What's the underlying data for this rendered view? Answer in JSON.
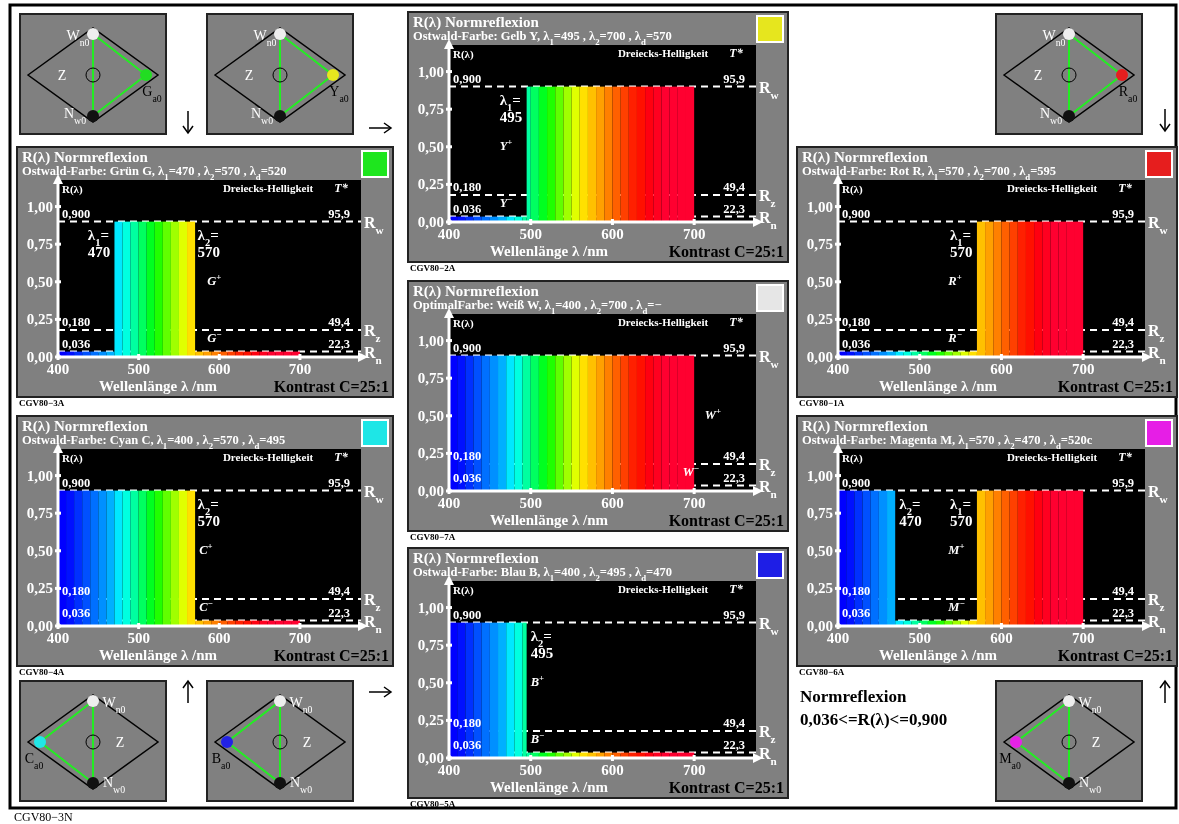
{
  "chart_data": [
    {
      "type": "other",
      "annotations": [
        "W$_{n0}$",
        "Z",
        "N$_{w0}$",
        "G$_{a0}$"
      ]
    },
    {
      "type": "other",
      "annotations": [
        "W$_{n0}$",
        "Z",
        "N$_{w0}$",
        "Y$_{a0}$"
      ]
    },
    {
      "type": "histogram",
      "title": "R(λ) Normreflexion",
      "subtitle": "Ostwald-Farbe: Gelb Y, λ$_{1}$=495 , λ$_{2}$=700 , λ$_{d}$=570",
      "xlabel": "Wellenlänge λ /nm",
      "ylabel": "R(λ)",
      "bins": [
        400,
        410,
        420,
        430,
        440,
        450,
        460,
        470,
        480,
        490,
        495,
        500,
        510,
        520,
        530,
        540,
        550,
        560,
        570,
        580,
        590,
        600,
        610,
        620,
        630,
        640,
        650,
        660,
        670,
        680,
        690,
        700
      ],
      "values": [
        0.036,
        0.036,
        0.036,
        0.036,
        0.036,
        0.036,
        0.036,
        0.036,
        0.036,
        0.036,
        0.9,
        0.9,
        0.9,
        0.9,
        0.9,
        0.9,
        0.9,
        0.9,
        0.9,
        0.9,
        0.9,
        0.9,
        0.9,
        0.9,
        0.9,
        0.9,
        0.9,
        0.9,
        0.9,
        0.9,
        0.9
      ],
      "colors": [
        "#0000ff",
        "#0010ff",
        "#0030ff",
        "#0050ff",
        "#0070ff",
        "#0090ff",
        "#00b0ff",
        "#00e8ff",
        "#00ffe0",
        "#00ffa0",
        "#00ffa0",
        "#00ff60",
        "#00ff20",
        "#20ff00",
        "#60ff00",
        "#a0ff00",
        "#e0ff00",
        "#ffe000",
        "#ffc000",
        "#ffa000",
        "#ff8000",
        "#ff6000",
        "#ff4000",
        "#ff2000",
        "#ff1000",
        "#ff0010",
        "#ff0020",
        "#ff0030",
        "#ff0030",
        "#ff0030",
        "#ff0030"
      ],
      "xlim": [
        400,
        772
      ],
      "ylim": [
        0,
        1.15
      ],
      "xticks": [
        400,
        500,
        600,
        700
      ],
      "yticks": [
        {
          "value": 0,
          "label": "0,00"
        },
        {
          "value": 0.25,
          "label": "0,25"
        },
        {
          "value": 0.5,
          "label": "0,50"
        },
        {
          "value": 0.75,
          "label": "0,75"
        },
        {
          "value": 1,
          "label": "1,00"
        }
      ],
      "ref_lines": [
        {
          "axis": "y",
          "value": 0.9,
          "label": "R$_{w}$",
          "color": "#ffffff",
          "line_style": "dashed"
        },
        {
          "axis": "y",
          "value": 0.18,
          "label": "R$_{z}$",
          "color": "#ffffff",
          "line_style": "dashed"
        },
        {
          "axis": "y",
          "value": 0.036,
          "label": "R$_{n}$",
          "color": "#ffffff",
          "line_style": "dashed"
        }
      ],
      "annotations": [
        "Dreiecks-Helligkeit",
        "T*",
        "Kontrast C=25:1",
        "CGV80−2A",
        "0,900",
        "0,180",
        "0,036",
        "95,9",
        "49,4",
        "22,3",
        "λ$_{1}$=\n495",
        "Y$^{+}$",
        "Y$^{−}$"
      ]
    },
    {
      "type": "other",
      "annotations": [
        "W$_{n0}$",
        "Z",
        "N$_{w0}$",
        "R$_{a0}$"
      ]
    },
    {
      "type": "histogram",
      "title": "R(λ) Normreflexion",
      "subtitle": "Ostwald-Farbe: Grün G, λ$_{1}$=470 , λ$_{2}$=570 , λ$_{d}$=520",
      "xlabel": "Wellenlänge λ /nm",
      "ylabel": "R(λ)",
      "bins": [
        400,
        410,
        420,
        430,
        440,
        450,
        460,
        470,
        480,
        490,
        500,
        510,
        520,
        530,
        540,
        550,
        560,
        570,
        580,
        590,
        600,
        610,
        620,
        630,
        640,
        650,
        660,
        670,
        680,
        690,
        700
      ],
      "values": [
        0.036,
        0.036,
        0.036,
        0.036,
        0.036,
        0.036,
        0.036,
        0.9,
        0.9,
        0.9,
        0.9,
        0.9,
        0.9,
        0.9,
        0.9,
        0.9,
        0.9,
        0.036,
        0.036,
        0.036,
        0.036,
        0.036,
        0.036,
        0.036,
        0.036,
        0.036,
        0.036,
        0.036,
        0.036,
        0.036
      ],
      "colors": [
        "#0000ff",
        "#0010ff",
        "#0030ff",
        "#0050ff",
        "#0070ff",
        "#0090ff",
        "#00b0ff",
        "#00e8ff",
        "#00ffe0",
        "#00ffa0",
        "#00ff60",
        "#00ff20",
        "#20ff00",
        "#60ff00",
        "#a0ff00",
        "#e0ff00",
        "#ffe000",
        "#ffc000",
        "#ffa000",
        "#ff8000",
        "#ff6000",
        "#ff4000",
        "#ff2000",
        "#ff1000",
        "#ff0010",
        "#ff0020",
        "#ff0030",
        "#ff0030",
        "#ff0030",
        "#ff0030"
      ],
      "xlim": [
        400,
        772
      ],
      "ylim": [
        0,
        1.15
      ],
      "xticks": [
        400,
        500,
        600,
        700
      ],
      "yticks": [
        {
          "value": 0,
          "label": "0,00"
        },
        {
          "value": 0.25,
          "label": "0,25"
        },
        {
          "value": 0.5,
          "label": "0,50"
        },
        {
          "value": 0.75,
          "label": "0,75"
        },
        {
          "value": 1,
          "label": "1,00"
        }
      ],
      "ref_lines": [
        {
          "axis": "y",
          "value": 0.9,
          "label": "R$_{w}$",
          "color": "#ffffff",
          "line_style": "dashed"
        },
        {
          "axis": "y",
          "value": 0.18,
          "label": "R$_{z}$",
          "color": "#ffffff",
          "line_style": "dashed"
        },
        {
          "axis": "y",
          "value": 0.036,
          "label": "R$_{n}$",
          "color": "#ffffff",
          "line_style": "dashed"
        }
      ],
      "annotations": [
        "Dreiecks-Helligkeit",
        "T*",
        "Kontrast C=25:1",
        "CGV80−3A",
        "0,900",
        "0,180",
        "0,036",
        "95,9",
        "49,4",
        "22,3",
        "λ$_{1}$=\n470",
        "λ$_{2}$=\n570",
        "G$^{+}$",
        "G$^{−}$"
      ]
    },
    {
      "type": "histogram",
      "title": "R(λ) Normreflexion",
      "subtitle": "Ostwald-Farbe: Rot R, λ$_{1}$=570 , λ$_{2}$=700 , λ$_{d}$=595",
      "xlabel": "Wellenlänge λ /nm",
      "ylabel": "R(λ)",
      "bins": [
        400,
        410,
        420,
        430,
        440,
        450,
        460,
        470,
        480,
        490,
        500,
        510,
        520,
        530,
        540,
        550,
        560,
        570,
        580,
        590,
        600,
        610,
        620,
        630,
        640,
        650,
        660,
        670,
        680,
        690,
        700
      ],
      "values": [
        0.036,
        0.036,
        0.036,
        0.036,
        0.036,
        0.036,
        0.036,
        0.036,
        0.036,
        0.036,
        0.036,
        0.036,
        0.036,
        0.036,
        0.036,
        0.036,
        0.036,
        0.9,
        0.9,
        0.9,
        0.9,
        0.9,
        0.9,
        0.9,
        0.9,
        0.9,
        0.9,
        0.9,
        0.9,
        0.9
      ],
      "colors": [
        "#0000ff",
        "#0010ff",
        "#0030ff",
        "#0050ff",
        "#0070ff",
        "#0090ff",
        "#00b0ff",
        "#00e8ff",
        "#00ffe0",
        "#00ffa0",
        "#00ff60",
        "#00ff20",
        "#20ff00",
        "#60ff00",
        "#a0ff00",
        "#e0ff00",
        "#ffe000",
        "#ffc000",
        "#ffa000",
        "#ff8000",
        "#ff6000",
        "#ff4000",
        "#ff2000",
        "#ff1000",
        "#ff0010",
        "#ff0020",
        "#ff0030",
        "#ff0030",
        "#ff0030",
        "#ff0030"
      ],
      "xlim": [
        400,
        772
      ],
      "ylim": [
        0,
        1.15
      ],
      "xticks": [
        400,
        500,
        600,
        700
      ],
      "yticks": [
        {
          "value": 0,
          "label": "0,00"
        },
        {
          "value": 0.25,
          "label": "0,25"
        },
        {
          "value": 0.5,
          "label": "0,50"
        },
        {
          "value": 0.75,
          "label": "0,75"
        },
        {
          "value": 1,
          "label": "1,00"
        }
      ],
      "ref_lines": [
        {
          "axis": "y",
          "value": 0.9,
          "label": "R$_{w}$",
          "color": "#ffffff",
          "line_style": "dashed"
        },
        {
          "axis": "y",
          "value": 0.18,
          "label": "R$_{z}$",
          "color": "#ffffff",
          "line_style": "dashed"
        },
        {
          "axis": "y",
          "value": 0.036,
          "label": "R$_{n}$",
          "color": "#ffffff",
          "line_style": "dashed"
        }
      ],
      "annotations": [
        "Dreiecks-Helligkeit",
        "T*",
        "Kontrast C=25:1",
        "CGV80−1A",
        "0,900",
        "0,180",
        "0,036",
        "95,9",
        "49,4",
        "22,3",
        "λ$_{1}$=\n570",
        "R$^{+}$",
        "R$^{−}$"
      ]
    },
    {
      "type": "histogram",
      "title": "R(λ) Normreflexion",
      "subtitle": "OptimalFarbe: Weiß W, λ$_{1}$=400 , λ$_{2}$=700 , λ$_{d}$=−",
      "xlabel": "Wellenlänge λ /nm",
      "ylabel": "R(λ)",
      "bins": [
        400,
        410,
        420,
        430,
        440,
        450,
        460,
        470,
        480,
        490,
        500,
        510,
        520,
        530,
        540,
        550,
        560,
        570,
        580,
        590,
        600,
        610,
        620,
        630,
        640,
        650,
        660,
        670,
        680,
        690,
        700
      ],
      "values": [
        0.9,
        0.9,
        0.9,
        0.9,
        0.9,
        0.9,
        0.9,
        0.9,
        0.9,
        0.9,
        0.9,
        0.9,
        0.9,
        0.9,
        0.9,
        0.9,
        0.9,
        0.9,
        0.9,
        0.9,
        0.9,
        0.9,
        0.9,
        0.9,
        0.9,
        0.9,
        0.9,
        0.9,
        0.9,
        0.9
      ],
      "colors": [
        "#0000ff",
        "#0010ff",
        "#0030ff",
        "#0050ff",
        "#0070ff",
        "#0090ff",
        "#00b0ff",
        "#00e8ff",
        "#00ffe0",
        "#00ffa0",
        "#00ff60",
        "#00ff20",
        "#20ff00",
        "#60ff00",
        "#a0ff00",
        "#e0ff00",
        "#ffe000",
        "#ffc000",
        "#ffa000",
        "#ff8000",
        "#ff6000",
        "#ff4000",
        "#ff2000",
        "#ff1000",
        "#ff0010",
        "#ff0020",
        "#ff0030",
        "#ff0030",
        "#ff0030",
        "#ff0030"
      ],
      "xlim": [
        400,
        772
      ],
      "ylim": [
        0,
        1.15
      ],
      "xticks": [
        400,
        500,
        600,
        700
      ],
      "yticks": [
        {
          "value": 0,
          "label": "0,00"
        },
        {
          "value": 0.25,
          "label": "0,25"
        },
        {
          "value": 0.5,
          "label": "0,50"
        },
        {
          "value": 0.75,
          "label": "0,75"
        },
        {
          "value": 1,
          "label": "1,00"
        }
      ],
      "ref_lines": [
        {
          "axis": "y",
          "value": 0.9,
          "label": "R$_{w}$",
          "color": "#ffffff",
          "line_style": "dashed"
        },
        {
          "axis": "y",
          "value": 0.18,
          "label": "R$_{z}$",
          "color": "#ffffff",
          "line_style": "dashed"
        },
        {
          "axis": "y",
          "value": 0.036,
          "label": "R$_{n}$",
          "color": "#ffffff",
          "line_style": "dashed"
        }
      ],
      "annotations": [
        "Dreiecks-Helligkeit",
        "T*",
        "Kontrast C=25:1",
        "CGV80−7A",
        "0,900",
        "0,180",
        "0,036",
        "95,9",
        "49,4",
        "22,3",
        "W$^{+}$",
        "W$^{−}$"
      ]
    },
    {
      "type": "histogram",
      "title": "R(λ) Normreflexion",
      "subtitle": "Ostwald-Farbe: Cyan C, λ$_{1}$=400 , λ$_{2}$=570 , λ$_{d}$=495",
      "xlabel": "Wellenlänge λ /nm",
      "ylabel": "R(λ)",
      "bins": [
        400,
        410,
        420,
        430,
        440,
        450,
        460,
        470,
        480,
        490,
        500,
        510,
        520,
        530,
        540,
        550,
        560,
        570,
        580,
        590,
        600,
        610,
        620,
        630,
        640,
        650,
        660,
        670,
        680,
        690,
        700
      ],
      "values": [
        0.9,
        0.9,
        0.9,
        0.9,
        0.9,
        0.9,
        0.9,
        0.9,
        0.9,
        0.9,
        0.9,
        0.9,
        0.9,
        0.9,
        0.9,
        0.9,
        0.9,
        0.036,
        0.036,
        0.036,
        0.036,
        0.036,
        0.036,
        0.036,
        0.036,
        0.036,
        0.036,
        0.036,
        0.036,
        0.036
      ],
      "colors": [
        "#0000ff",
        "#0010ff",
        "#0030ff",
        "#0050ff",
        "#0070ff",
        "#0090ff",
        "#00b0ff",
        "#00e8ff",
        "#00ffe0",
        "#00ffa0",
        "#00ff60",
        "#00ff20",
        "#20ff00",
        "#60ff00",
        "#a0ff00",
        "#e0ff00",
        "#ffe000",
        "#ffc000",
        "#ffa000",
        "#ff8000",
        "#ff6000",
        "#ff4000",
        "#ff2000",
        "#ff1000",
        "#ff0010",
        "#ff0020",
        "#ff0030",
        "#ff0030",
        "#ff0030",
        "#ff0030"
      ],
      "xlim": [
        400,
        772
      ],
      "ylim": [
        0,
        1.15
      ],
      "xticks": [
        400,
        500,
        600,
        700
      ],
      "yticks": [
        {
          "value": 0,
          "label": "0,00"
        },
        {
          "value": 0.25,
          "label": "0,25"
        },
        {
          "value": 0.5,
          "label": "0,50"
        },
        {
          "value": 0.75,
          "label": "0,75"
        },
        {
          "value": 1,
          "label": "1,00"
        }
      ],
      "ref_lines": [
        {
          "axis": "y",
          "value": 0.9,
          "label": "R$_{w}$",
          "color": "#ffffff",
          "line_style": "dashed"
        },
        {
          "axis": "y",
          "value": 0.18,
          "label": "R$_{z}$",
          "color": "#ffffff",
          "line_style": "dashed"
        },
        {
          "axis": "y",
          "value": 0.036,
          "label": "R$_{n}$",
          "color": "#ffffff",
          "line_style": "dashed"
        }
      ],
      "annotations": [
        "Dreiecks-Helligkeit",
        "T*",
        "Kontrast C=25:1",
        "CGV80−4A",
        "0,900",
        "0,180",
        "0,036",
        "95,9",
        "49,4",
        "22,3",
        "λ$_{2}$=\n570",
        "C$^{+}$",
        "C$^{−}$"
      ]
    },
    {
      "type": "histogram",
      "title": "R(λ) Normreflexion",
      "subtitle": "Ostwald-Farbe: Magenta M, λ$_{1}$=570 , λ$_{2}$=470 , λ$_{d}$=520c",
      "xlabel": "Wellenlänge λ /nm",
      "ylabel": "R(λ)",
      "bins": [
        400,
        410,
        420,
        430,
        440,
        450,
        460,
        470,
        480,
        490,
        500,
        510,
        520,
        530,
        540,
        550,
        560,
        570,
        580,
        590,
        600,
        610,
        620,
        630,
        640,
        650,
        660,
        670,
        680,
        690,
        700
      ],
      "values": [
        0.9,
        0.9,
        0.9,
        0.9,
        0.9,
        0.9,
        0.9,
        0.036,
        0.036,
        0.036,
        0.036,
        0.036,
        0.036,
        0.036,
        0.036,
        0.036,
        0.036,
        0.9,
        0.9,
        0.9,
        0.9,
        0.9,
        0.9,
        0.9,
        0.9,
        0.9,
        0.9,
        0.9,
        0.9,
        0.9
      ],
      "colors": [
        "#0000ff",
        "#0010ff",
        "#0030ff",
        "#0050ff",
        "#0070ff",
        "#0090ff",
        "#00b0ff",
        "#00e8ff",
        "#00ffe0",
        "#00ffa0",
        "#00ff60",
        "#00ff20",
        "#20ff00",
        "#60ff00",
        "#a0ff00",
        "#e0ff00",
        "#ffe000",
        "#ffc000",
        "#ffa000",
        "#ff8000",
        "#ff6000",
        "#ff4000",
        "#ff2000",
        "#ff1000",
        "#ff0010",
        "#ff0020",
        "#ff0030",
        "#ff0030",
        "#ff0030",
        "#ff0030"
      ],
      "xlim": [
        400,
        772
      ],
      "ylim": [
        0,
        1.15
      ],
      "xticks": [
        400,
        500,
        600,
        700
      ],
      "yticks": [
        {
          "value": 0,
          "label": "0,00"
        },
        {
          "value": 0.25,
          "label": "0,25"
        },
        {
          "value": 0.5,
          "label": "0,50"
        },
        {
          "value": 0.75,
          "label": "0,75"
        },
        {
          "value": 1,
          "label": "1,00"
        }
      ],
      "ref_lines": [
        {
          "axis": "y",
          "value": 0.9,
          "label": "R$_{w}$",
          "color": "#ffffff",
          "line_style": "dashed"
        },
        {
          "axis": "y",
          "value": 0.18,
          "label": "R$_{z}$",
          "color": "#ffffff",
          "line_style": "dashed"
        },
        {
          "axis": "y",
          "value": 0.036,
          "label": "R$_{n}$",
          "color": "#ffffff",
          "line_style": "dashed"
        }
      ],
      "annotations": [
        "Dreiecks-Helligkeit",
        "T*",
        "Kontrast C=25:1",
        "CGV80−6A",
        "0,900",
        "0,180",
        "0,036",
        "95,9",
        "49,4",
        "22,3",
        "λ$_{2}$=\n470",
        "λ$_{1}$=\n570",
        "M$^{+}$",
        "M$^{−}$"
      ]
    },
    {
      "type": "other",
      "annotations": [
        "W$_{n0}$",
        "Z",
        "N$_{w0}$",
        "C$_{a0}$"
      ]
    },
    {
      "type": "other",
      "annotations": [
        "W$_{n0}$",
        "Z",
        "N$_{w0}$",
        "B$_{a0}$"
      ]
    },
    {
      "type": "histogram",
      "title": "R(λ) Normreflexion",
      "subtitle": "Ostwald-Farbe: Blau B, λ$_{1}$=400 , λ$_{2}$=495 , λ$_{d}$=470",
      "xlabel": "Wellenlänge λ /nm",
      "ylabel": "R(λ)",
      "bins": [
        400,
        410,
        420,
        430,
        440,
        450,
        460,
        470,
        480,
        490,
        495,
        500,
        510,
        520,
        530,
        540,
        550,
        560,
        570,
        580,
        590,
        600,
        610,
        620,
        630,
        640,
        650,
        660,
        670,
        680,
        690,
        700
      ],
      "values": [
        0.9,
        0.9,
        0.9,
        0.9,
        0.9,
        0.9,
        0.9,
        0.9,
        0.9,
        0.9,
        0.036,
        0.036,
        0.036,
        0.036,
        0.036,
        0.036,
        0.036,
        0.036,
        0.036,
        0.036,
        0.036,
        0.036,
        0.036,
        0.036,
        0.036,
        0.036,
        0.036,
        0.036,
        0.036,
        0.036,
        0.036
      ],
      "colors": [
        "#0000ff",
        "#0010ff",
        "#0030ff",
        "#0050ff",
        "#0070ff",
        "#0090ff",
        "#00b0ff",
        "#00e8ff",
        "#00ffe0",
        "#00ffa0",
        "#00ffa0",
        "#00ff60",
        "#00ff20",
        "#20ff00",
        "#60ff00",
        "#a0ff00",
        "#e0ff00",
        "#ffe000",
        "#ffc000",
        "#ffa000",
        "#ff8000",
        "#ff6000",
        "#ff4000",
        "#ff2000",
        "#ff1000",
        "#ff0010",
        "#ff0020",
        "#ff0030",
        "#ff0030",
        "#ff0030",
        "#ff0030"
      ],
      "xlim": [
        400,
        772
      ],
      "ylim": [
        0,
        1.15
      ],
      "xticks": [
        400,
        500,
        600,
        700
      ],
      "yticks": [
        {
          "value": 0,
          "label": "0,00"
        },
        {
          "value": 0.25,
          "label": "0,25"
        },
        {
          "value": 0.5,
          "label": "0,50"
        },
        {
          "value": 0.75,
          "label": "0,75"
        },
        {
          "value": 1,
          "label": "1,00"
        }
      ],
      "ref_lines": [
        {
          "axis": "y",
          "value": 0.9,
          "label": "R$_{w}$",
          "color": "#ffffff",
          "line_style": "dashed"
        },
        {
          "axis": "y",
          "value": 0.18,
          "label": "R$_{z}$",
          "color": "#ffffff",
          "line_style": "dashed"
        },
        {
          "axis": "y",
          "value": 0.036,
          "label": "R$_{n}$",
          "color": "#ffffff",
          "line_style": "dashed"
        }
      ],
      "annotations": [
        "Dreiecks-Helligkeit",
        "T*",
        "Kontrast C=25:1",
        "CGV80−5A",
        "0,900",
        "0,180",
        "0,036",
        "95,9",
        "49,4",
        "22,3",
        "λ$_{2}$=\n495",
        "B$^{+}$",
        "B$^{−}$"
      ]
    },
    {
      "type": "other",
      "title": "Normreflexion",
      "subtitle": "0,036<=R(λ)<=0,900",
      "annotations": [
        "CGV80−3N"
      ]
    },
    {
      "type": "other",
      "annotations": [
        "W$_{n0}$",
        "Z",
        "N$_{w0}$",
        "M$_{a0}$"
      ]
    }
  ]
}
